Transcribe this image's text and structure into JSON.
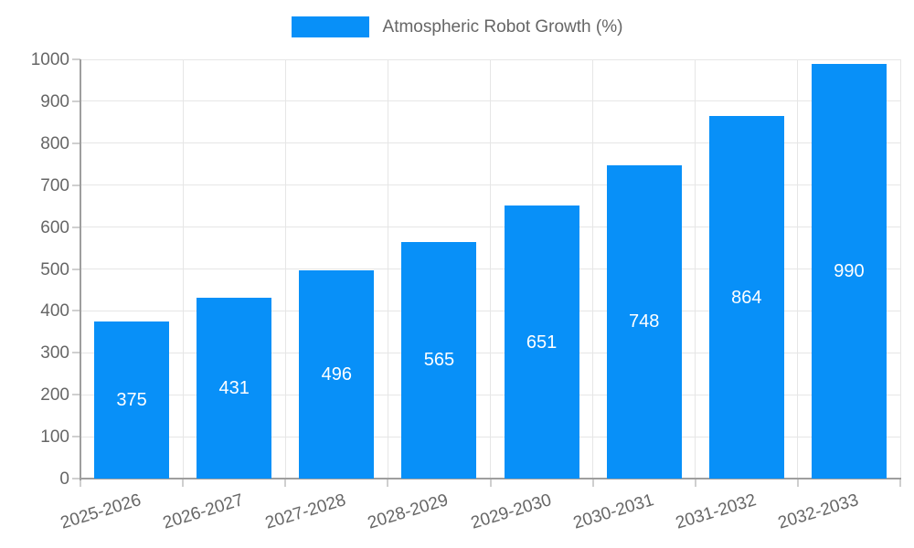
{
  "chart_data": {
    "type": "bar",
    "title": "Atmospheric Robot Growth (%)",
    "categories": [
      "2025-2026",
      "2026-2027",
      "2027-2028",
      "2028-2029",
      "2029-2030",
      "2030-2031",
      "2031-2032",
      "2032-2033"
    ],
    "values": [
      375,
      431,
      496,
      565,
      651,
      748,
      864,
      990
    ],
    "xlabel": "",
    "ylabel": "",
    "ylim": [
      0,
      1000
    ],
    "ytick_step": 100,
    "grid": true,
    "legend_position": "top-center",
    "bar_label_style": "white-centered-inside",
    "x_label_rotation_deg": -17,
    "colors": {
      "bar": "#0890f8",
      "axis": "#9e9e9e",
      "grid": "#e6e6e6",
      "tick": "#cfcfcf",
      "text": "#666666",
      "bar_label": "#ffffff"
    }
  }
}
